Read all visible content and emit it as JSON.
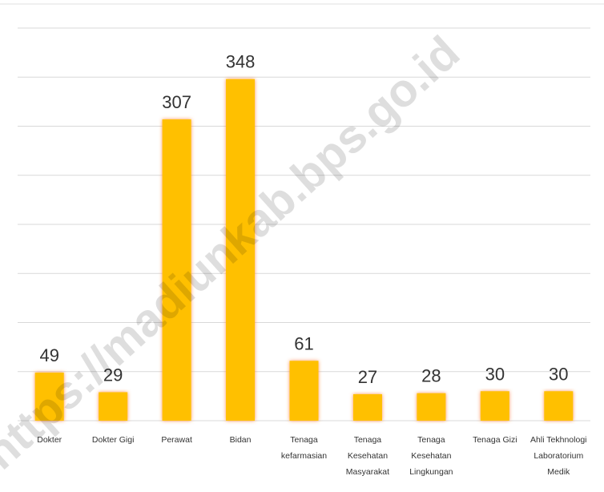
{
  "chart_data": {
    "type": "bar",
    "categories": [
      "Dokter",
      "Dokter Gigi",
      "Perawat",
      "Bidan",
      "Tenaga kefarmasian",
      "Tenaga Kesehatan Masyarakat",
      "Tenaga Kesehatan Lingkungan",
      "Tenaga Gizi",
      "Ahli Tekhnologi Laboratorium Medik"
    ],
    "values": [
      49,
      29,
      307,
      348,
      61,
      27,
      28,
      30,
      30
    ],
    "color": "#ffc000",
    "ylim": [
      0,
      400
    ],
    "yticks": [
      0,
      50,
      100,
      150,
      200,
      250,
      300,
      350,
      400
    ],
    "grid": true,
    "watermark": "https://madiunkab.bps.go.id"
  }
}
